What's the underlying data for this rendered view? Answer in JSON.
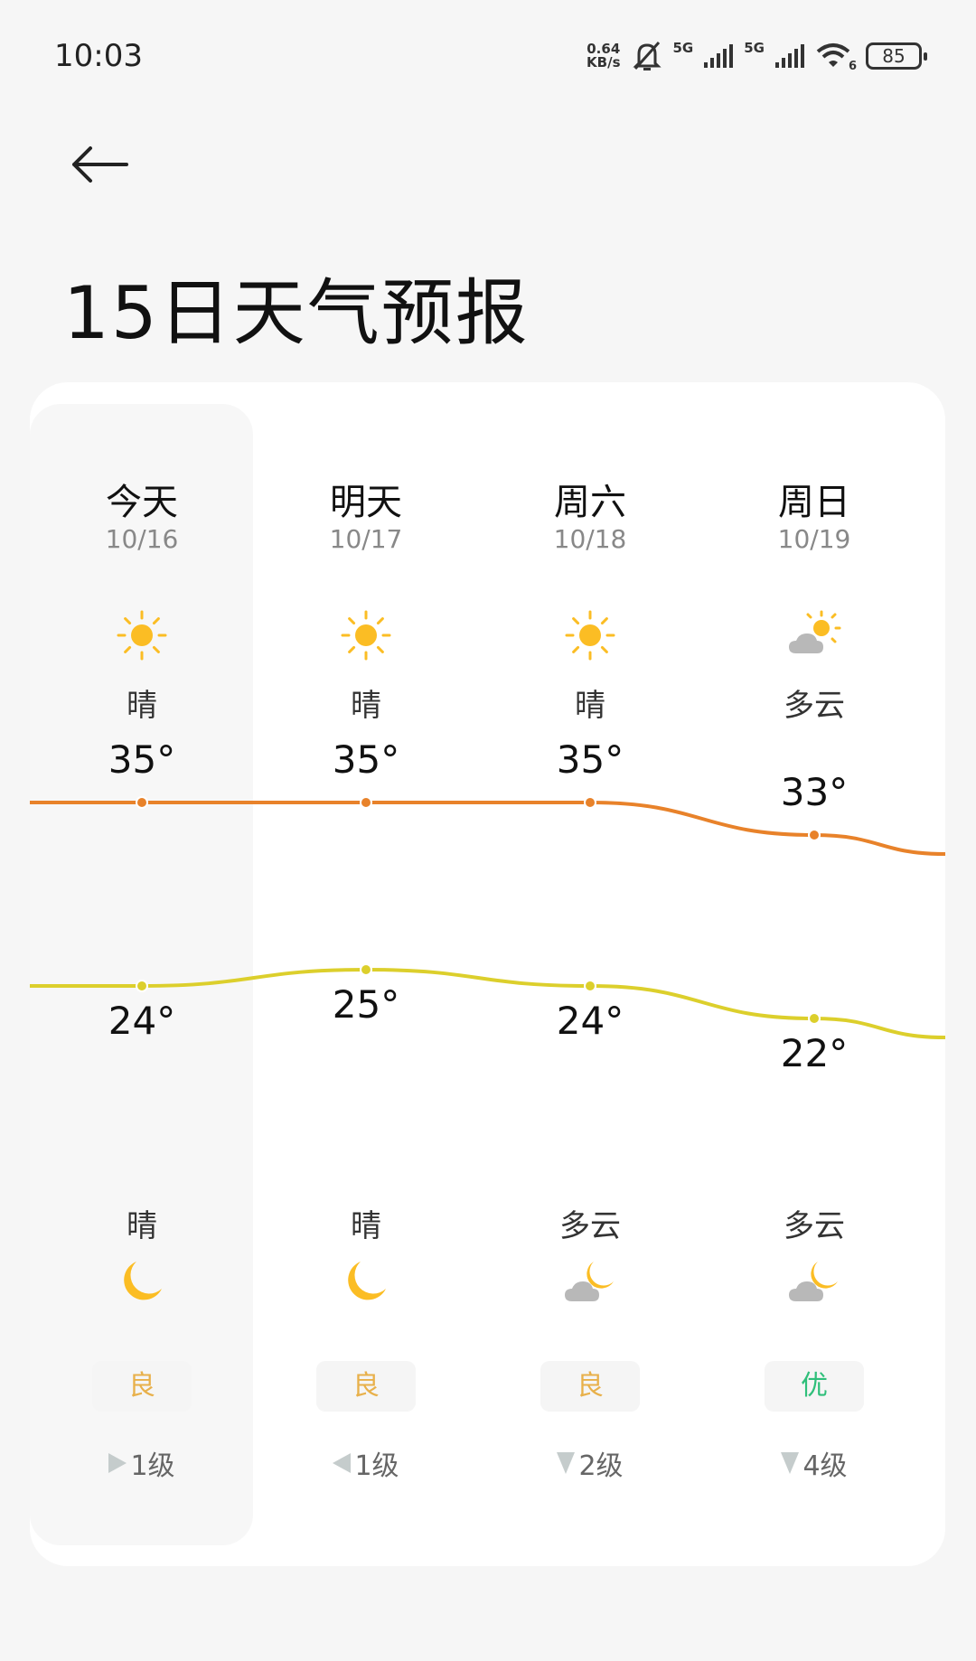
{
  "status": {
    "time": "10:03",
    "speed_value": "0.64",
    "speed_unit": "KB/s",
    "net1": "5G",
    "net2": "5G",
    "wifi_ver": "6",
    "battery": "85"
  },
  "header": {
    "back_icon": "arrow-left-icon",
    "title": "15日天气预报"
  },
  "colors": {
    "high_line": "#e8822a",
    "low_line": "#dccf2c",
    "aqi_good": "#e8b04a",
    "aqi_excellent": "#2fbf7a"
  },
  "days": [
    {
      "day": "今天",
      "date": "10/16",
      "day_cond": "晴",
      "day_icon": "sun",
      "high": 35,
      "high_label": "35°",
      "low": 24,
      "low_label": "24°",
      "night_cond": "晴",
      "night_icon": "moon",
      "aqi": "良",
      "aqi_level": "good",
      "wind": "1级",
      "wind_dir": "right"
    },
    {
      "day": "明天",
      "date": "10/17",
      "day_cond": "晴",
      "day_icon": "sun",
      "high": 35,
      "high_label": "35°",
      "low": 25,
      "low_label": "25°",
      "night_cond": "晴",
      "night_icon": "moon",
      "aqi": "良",
      "aqi_level": "good",
      "wind": "1级",
      "wind_dir": "left"
    },
    {
      "day": "周六",
      "date": "10/18",
      "day_cond": "晴",
      "day_icon": "sun",
      "high": 35,
      "high_label": "35°",
      "low": 24,
      "low_label": "24°",
      "night_cond": "多云",
      "night_icon": "cloud-moon",
      "aqi": "良",
      "aqi_level": "good",
      "wind": "2级",
      "wind_dir": "down"
    },
    {
      "day": "周日",
      "date": "10/19",
      "day_cond": "多云",
      "day_icon": "cloud-sun",
      "high": 33,
      "high_label": "33°",
      "low": 22,
      "low_label": "22°",
      "night_cond": "多云",
      "night_icon": "cloud-moon",
      "aqi": "优",
      "aqi_level": "excellent",
      "wind": "4级",
      "wind_dir": "down"
    }
  ]
}
